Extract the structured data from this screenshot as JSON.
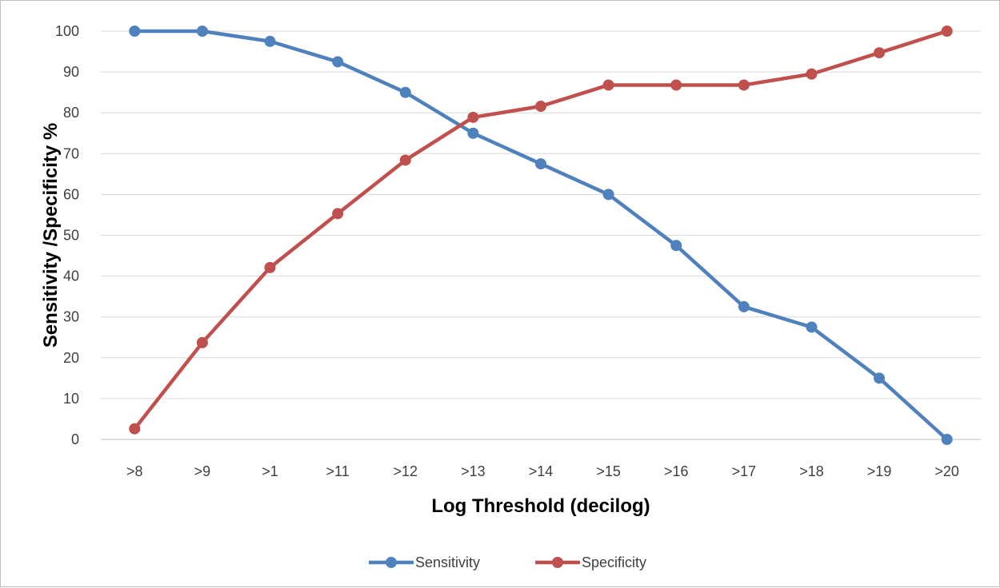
{
  "chart_data": {
    "type": "line",
    "title": "",
    "xlabel": "Log Threshold (decilog)",
    "ylabel": "Sensitivity /Specificity %",
    "categories": [
      ">8",
      ">9",
      ">1",
      ">11",
      ">12",
      ">13",
      ">14",
      ">15",
      ">16",
      ">17",
      ">18",
      ">19",
      ">20"
    ],
    "ylim": [
      0,
      100
    ],
    "yticks": [
      0,
      10,
      20,
      30,
      40,
      50,
      60,
      70,
      80,
      90,
      100
    ],
    "grid": true,
    "legend": "bottom",
    "series": [
      {
        "name": "Sensitivity",
        "color": "#4f81bd",
        "values": [
          100,
          100,
          97.5,
          92.5,
          85,
          75,
          67.5,
          60,
          47.5,
          32.5,
          27.5,
          15,
          0
        ]
      },
      {
        "name": "Specificity",
        "color": "#c0504d",
        "values": [
          2.6,
          23.7,
          42.1,
          55.3,
          68.4,
          78.9,
          81.6,
          86.8,
          86.8,
          86.8,
          89.5,
          94.7,
          100
        ]
      }
    ]
  }
}
